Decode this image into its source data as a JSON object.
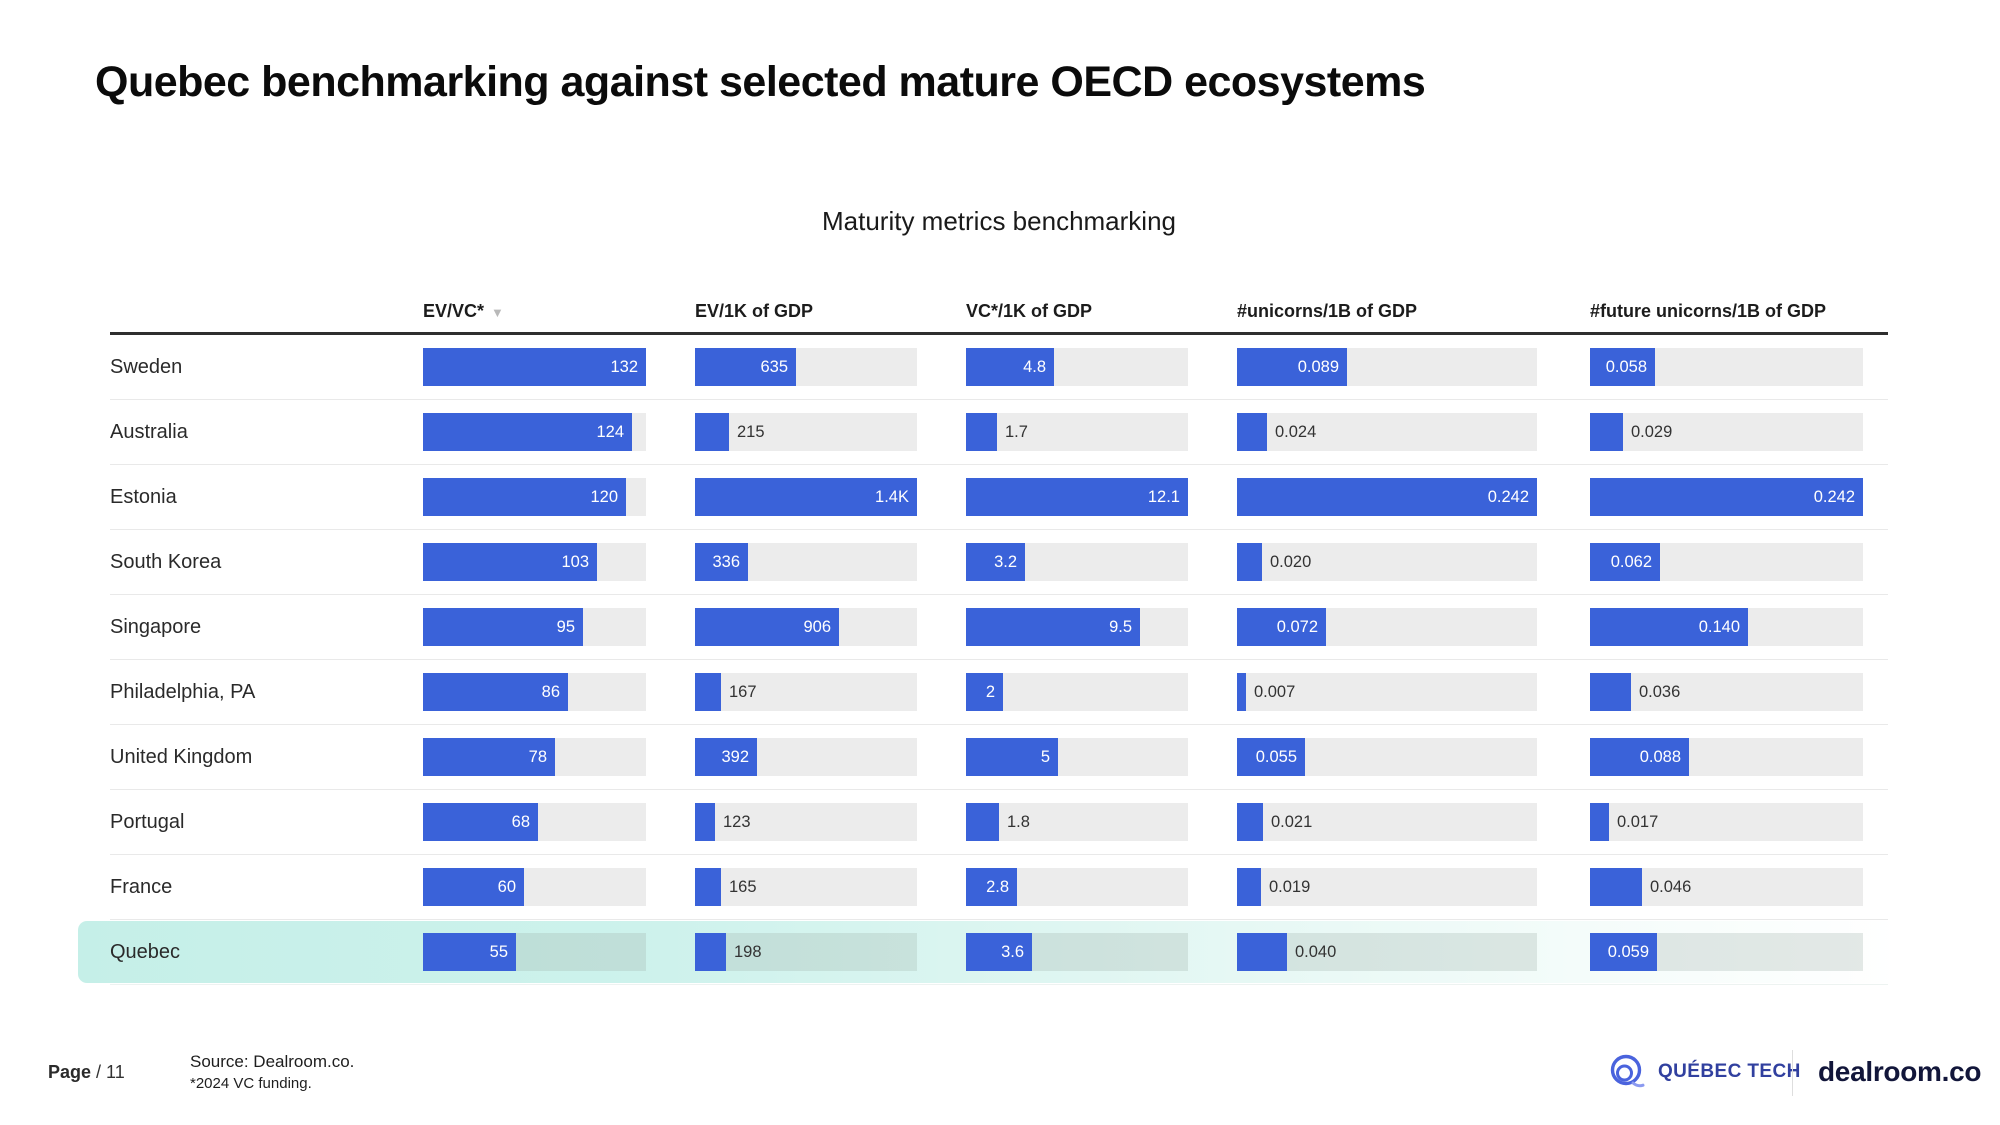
{
  "title": "Quebec benchmarking against selected mature OECD ecosystems",
  "chart_data": {
    "type": "bar",
    "title": "Maturity metrics benchmarking",
    "orientation": "horizontal",
    "note": "each column's bars are scaled to that column's maximum value",
    "sort_icon": "▼",
    "categories": [
      "Sweden",
      "Australia",
      "Estonia",
      "South Korea",
      "Singapore",
      "Philadelphia, PA",
      "United Kingdom",
      "Portugal",
      "France",
      "Quebec"
    ],
    "highlighted_category": "Quebec",
    "series": [
      {
        "name": "EV/VC*",
        "sorted": true,
        "max": 132,
        "values": [
          132,
          124,
          120,
          103,
          95,
          86,
          78,
          68,
          60,
          55
        ],
        "labels": [
          "132",
          "124",
          "120",
          "103",
          "95",
          "86",
          "78",
          "68",
          "60",
          "55"
        ]
      },
      {
        "name": "EV/1K of GDP",
        "sorted": false,
        "max": 1400,
        "values": [
          635,
          215,
          1400,
          336,
          906,
          167,
          392,
          123,
          165,
          198
        ],
        "labels": [
          "635",
          "215",
          "1.4K",
          "336",
          "906",
          "167",
          "392",
          "123",
          "165",
          "198"
        ]
      },
      {
        "name": "VC*/1K of GDP",
        "sorted": false,
        "max": 12.1,
        "values": [
          4.8,
          1.7,
          12.1,
          3.2,
          9.5,
          2,
          5,
          1.8,
          2.8,
          3.6
        ],
        "labels": [
          "4.8",
          "1.7",
          "12.1",
          "3.2",
          "9.5",
          "2",
          "5",
          "1.8",
          "2.8",
          "3.6"
        ]
      },
      {
        "name": "#unicorns/1B of GDP",
        "sorted": false,
        "max": 0.242,
        "values": [
          0.089,
          0.024,
          0.242,
          0.02,
          0.072,
          0.007,
          0.055,
          0.021,
          0.019,
          0.04
        ],
        "labels": [
          "0.089",
          "0.024",
          "0.242",
          "0.020",
          "0.072",
          "0.007",
          "0.055",
          "0.021",
          "0.019",
          "0.040"
        ]
      },
      {
        "name": "#future unicorns/1B of GDP",
        "sorted": false,
        "max": 0.242,
        "values": [
          0.058,
          0.029,
          0.242,
          0.062,
          0.14,
          0.036,
          0.088,
          0.017,
          0.046,
          0.059
        ],
        "labels": [
          "0.058",
          "0.029",
          "0.242",
          "0.062",
          "0.140",
          "0.036",
          "0.088",
          "0.017",
          "0.046",
          "0.059"
        ]
      }
    ],
    "bar_color": "#3a62d9",
    "track_color": "#ececec",
    "highlight_color": "#c5efe8"
  },
  "footer": {
    "page_label": "Page",
    "page_suffix": " / 11",
    "source_line1": "Source: Dealroom.co.",
    "source_line2": "*2024 VC funding.",
    "quebec_tech_label": "QUÉBEC TECH",
    "dealroom_label": "dealroom.co",
    "quebec_tech_color": "#31409f",
    "dealroom_color": "#12163a"
  }
}
